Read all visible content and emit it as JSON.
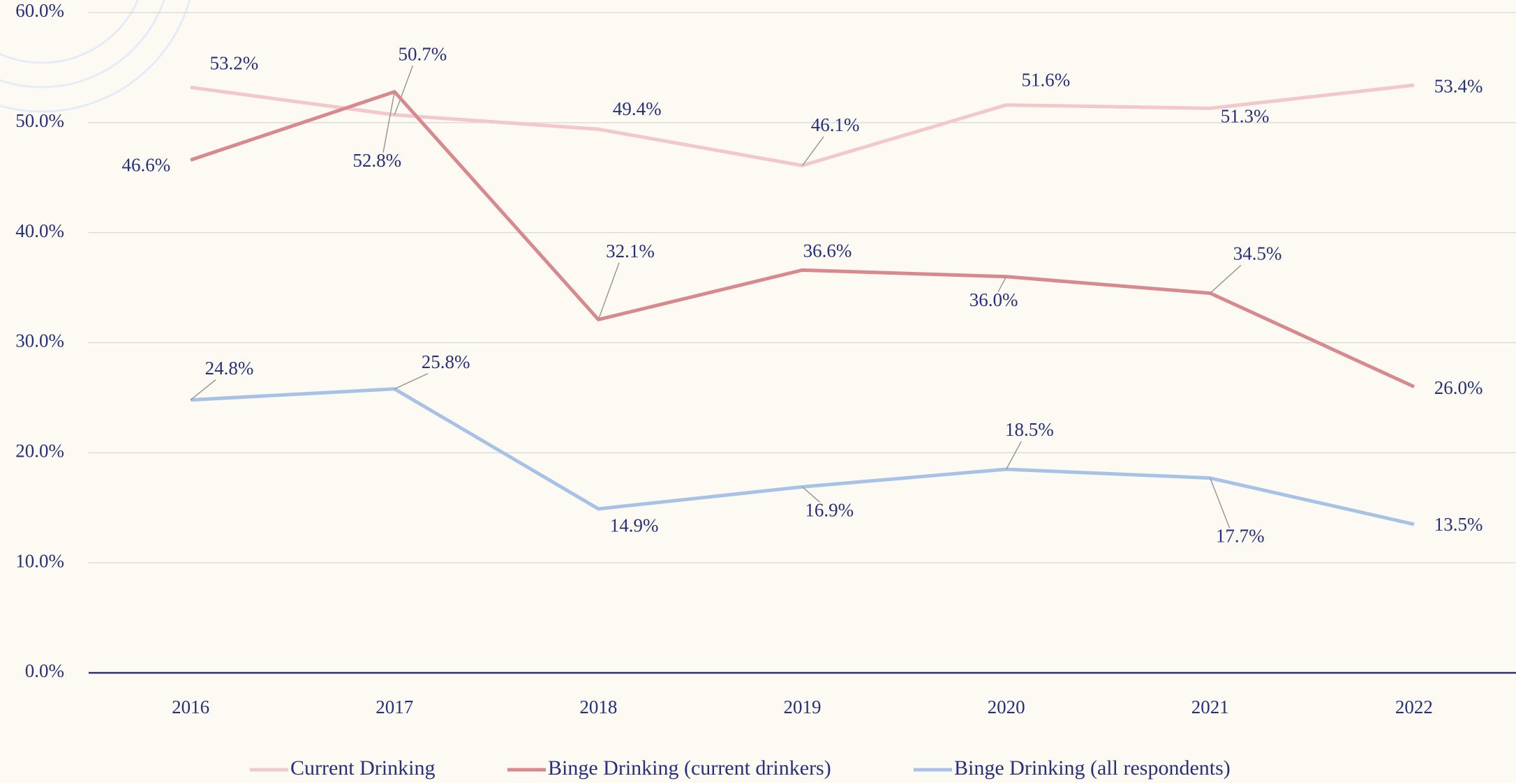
{
  "chart_data": {
    "type": "line",
    "categories": [
      "2016",
      "2017",
      "2018",
      "2019",
      "2020",
      "2021",
      "2022"
    ],
    "series": [
      {
        "name": "Current Drinking",
        "color": "#f2c8ca",
        "values": [
          53.2,
          50.7,
          49.4,
          46.1,
          51.6,
          51.3,
          53.4
        ],
        "value_labels": [
          "53.2%",
          "50.7%",
          "49.4%",
          "46.1%",
          "51.6%",
          "51.3%",
          "53.4%"
        ]
      },
      {
        "name": "Binge Drinking (current drinkers)",
        "color": "#d8898d",
        "values": [
          46.6,
          52.8,
          32.1,
          36.6,
          36.0,
          34.5,
          26.0
        ],
        "value_labels": [
          "46.6%",
          "52.8%",
          "32.1%",
          "36.6%",
          "36.0%",
          "34.5%",
          "26.0%"
        ]
      },
      {
        "name": "Binge Drinking (all respondents)",
        "color": "#a8c2e6",
        "values": [
          24.8,
          25.8,
          14.9,
          16.9,
          18.5,
          17.7,
          13.5
        ],
        "value_labels": [
          "24.8%",
          "25.8%",
          "14.9%",
          "16.9%",
          "18.5%",
          "17.7%",
          "13.5%"
        ]
      }
    ],
    "ylim": [
      0,
      60
    ],
    "yticks": [
      {
        "value": 0,
        "label": "0.0%"
      },
      {
        "value": 10,
        "label": "10.0%"
      },
      {
        "value": 20,
        "label": "20.0%"
      },
      {
        "value": 30,
        "label": "30.0%"
      },
      {
        "value": 40,
        "label": "40.0%"
      },
      {
        "value": 50,
        "label": "50.0%"
      },
      {
        "value": 60,
        "label": "60.0%"
      }
    ],
    "grid": true,
    "legend": "bottom"
  }
}
